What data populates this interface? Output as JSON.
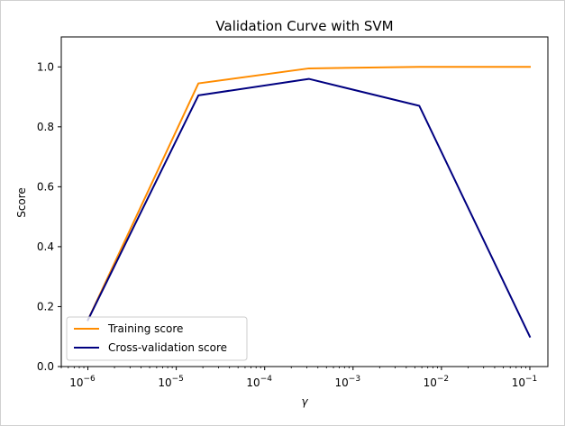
{
  "chart_data": {
    "type": "line",
    "title": "Validation Curve with SVM",
    "xlabel": "γ",
    "ylabel": "Score",
    "xscale": "log",
    "xlim": [
      5e-07,
      0.16
    ],
    "ylim": [
      0.0,
      1.1
    ],
    "x": [
      1e-06,
      1.78e-05,
      0.000316,
      0.00562,
      0.1
    ],
    "series": [
      {
        "name": "Training score",
        "values": [
          0.155,
          0.945,
          0.995,
          1.0,
          1.0
        ],
        "color": "#ff8c00"
      },
      {
        "name": "Cross-validation score",
        "values": [
          0.155,
          0.905,
          0.96,
          0.87,
          0.1
        ],
        "color": "#000080"
      }
    ],
    "yticks": [
      {
        "value": 0.0,
        "label": "0.0"
      },
      {
        "value": 0.2,
        "label": "0.2"
      },
      {
        "value": 0.4,
        "label": "0.4"
      },
      {
        "value": 0.6,
        "label": "0.6"
      },
      {
        "value": 0.8,
        "label": "0.8"
      },
      {
        "value": 1.0,
        "label": "1.0"
      }
    ],
    "xticks": [
      {
        "value": 1e-06,
        "base": "10",
        "exp": "−6"
      },
      {
        "value": 1e-05,
        "base": "10",
        "exp": "−5"
      },
      {
        "value": 0.0001,
        "base": "10",
        "exp": "−4"
      },
      {
        "value": 0.001,
        "base": "10",
        "exp": "−3"
      },
      {
        "value": 0.01,
        "base": "10",
        "exp": "−2"
      },
      {
        "value": 0.1,
        "base": "10",
        "exp": "−1"
      }
    ],
    "grid": false,
    "legend_position": "lower-left"
  }
}
